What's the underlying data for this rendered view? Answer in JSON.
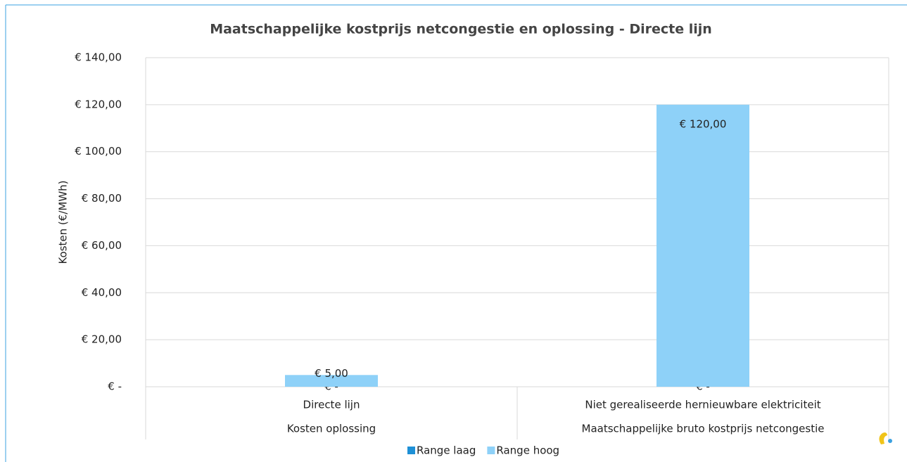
{
  "chart_data": {
    "type": "stacked_bar",
    "title": "Maatschappelijke kostprijs netcongestie en oplossing - Directe lijn",
    "y_label": "Kosten (€/MWh)",
    "categories": [
      "Directe lijn",
      "Niet gerealiseerde hernieuwbare elektriciteit"
    ],
    "groups": [
      "Kosten oplossing",
      "Maatschappelijke bruto kostprijs netcongestie"
    ],
    "series": [
      {
        "name": "Range laag",
        "color": "#1e90d6",
        "values": [
          0,
          0
        ],
        "value_labels": [
          "€ -",
          "€ -"
        ]
      },
      {
        "name": "Range hoog",
        "color": "#8ed1f8",
        "values": [
          5,
          120
        ],
        "value_labels": [
          "€ 5,00",
          "€ 120,00"
        ]
      }
    ],
    "ylim": [
      0,
      140
    ],
    "yticks": [
      {
        "value": 0,
        "label": "€ -"
      },
      {
        "value": 20,
        "label": "€ 20,00"
      },
      {
        "value": 40,
        "label": "€ 40,00"
      },
      {
        "value": 60,
        "label": "€ 60,00"
      },
      {
        "value": 80,
        "label": "€ 80,00"
      },
      {
        "value": 100,
        "label": "€ 100,00"
      },
      {
        "value": 120,
        "label": "€ 120,00"
      },
      {
        "value": 140,
        "label": "€ 140,00"
      }
    ],
    "grid": true,
    "legend": "bottom"
  }
}
